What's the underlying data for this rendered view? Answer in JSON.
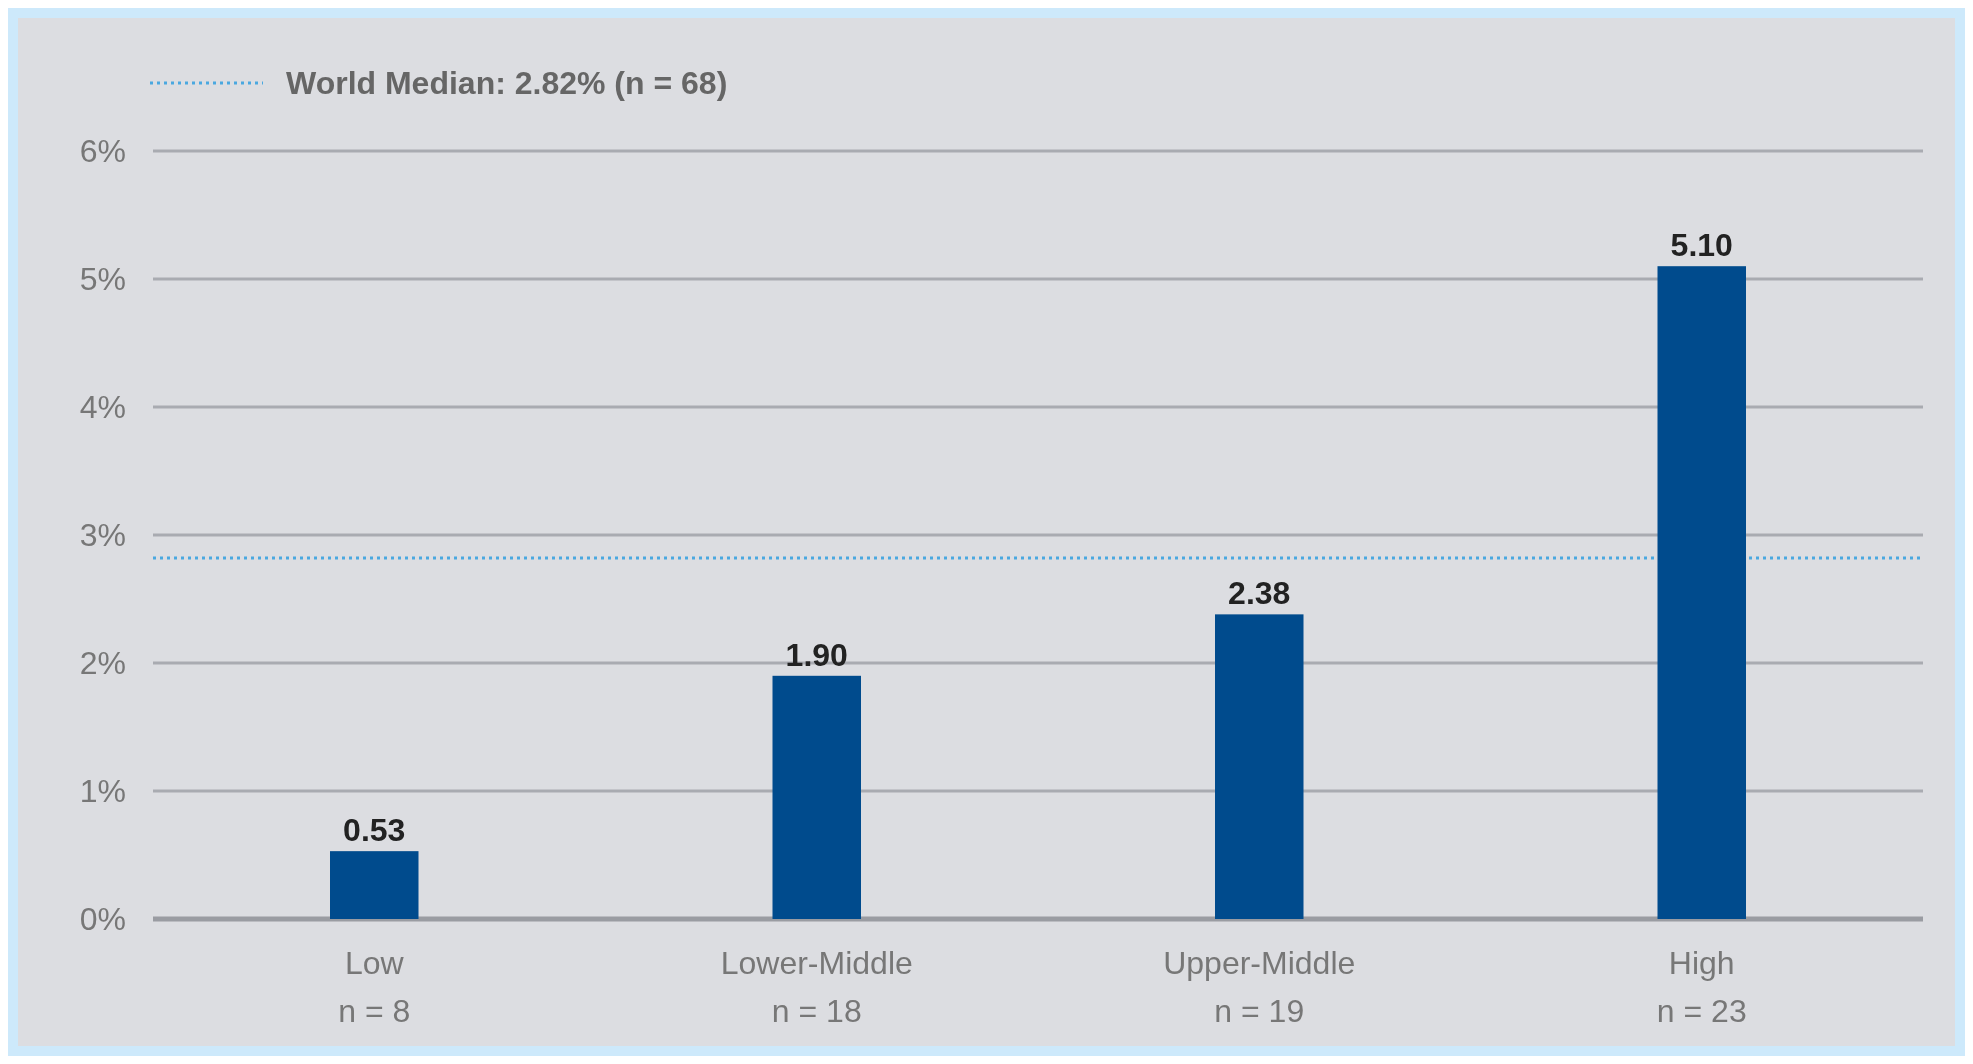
{
  "chart_data": {
    "type": "bar",
    "categories": [
      "Low\nn = 8",
      "Lower-Middle\nn = 18",
      "Upper-Middle\nn = 19",
      "High\nn = 23"
    ],
    "values": [
      0.53,
      1.9,
      2.38,
      5.1
    ],
    "value_labels": [
      "0.53",
      "1.90",
      "2.38",
      "5.10"
    ],
    "color": "#004b8d",
    "ylim": [
      0,
      6
    ],
    "yticks": [
      {
        "value": 0,
        "label": "0%"
      },
      {
        "value": 1,
        "label": "1%"
      },
      {
        "value": 2,
        "label": "2%"
      },
      {
        "value": 3,
        "label": "3%"
      },
      {
        "value": 4,
        "label": "4%"
      },
      {
        "value": 5,
        "label": "5%"
      },
      {
        "value": 6,
        "label": "6%"
      }
    ],
    "grid": "y",
    "legend": "top left",
    "ref_lines": [
      {
        "axis": "y",
        "value": 2.82,
        "label": "World Median: 2.82% (n = 68)",
        "color": "#4aa8e0",
        "line_style": "dotted"
      }
    ]
  }
}
